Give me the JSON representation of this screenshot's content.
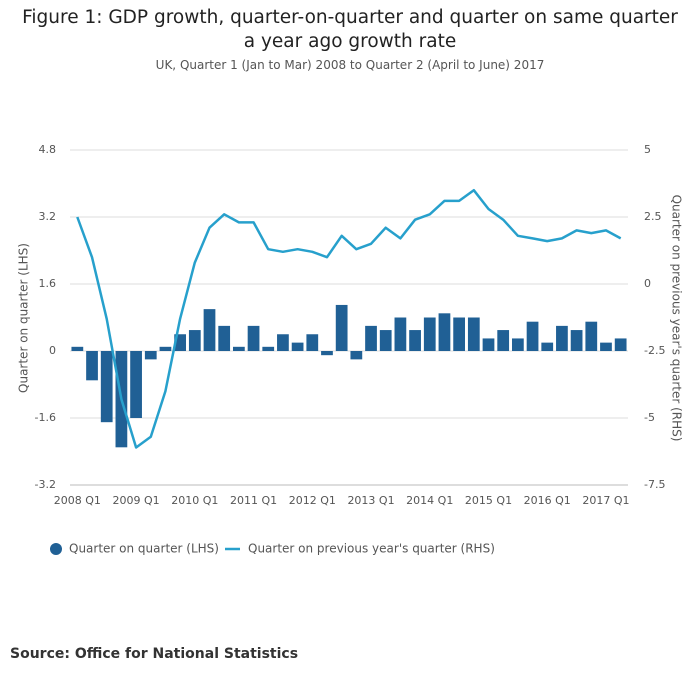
{
  "chart_data": {
    "type": "bar",
    "title": "Figure 1: GDP growth, quarter-on-quarter and quarter on same quarter a year ago growth rate",
    "subtitle": "UK, Quarter 1 (Jan to Mar) 2008 to Quarter 2 (April to June) 2017",
    "y_label": "Quarter on quarter (LHS)",
    "y2_label": "Quarter on previous year's quarter (RHS)",
    "source": "Source: Office for National Statistics",
    "categories": [
      "2008 Q1",
      null,
      null,
      null,
      "2009 Q1",
      null,
      null,
      null,
      "2010 Q1",
      null,
      null,
      null,
      "2011 Q1",
      null,
      null,
      null,
      "2012 Q1",
      null,
      null,
      null,
      "2013 Q1",
      null,
      null,
      null,
      "2014 Q1",
      null,
      null,
      null,
      "2015 Q1",
      null,
      null,
      null,
      "2016 Q1",
      null,
      null,
      null,
      "2017 Q1",
      null
    ],
    "series": [
      {
        "name": "Quarter on quarter (LHS)",
        "type": "bar",
        "color": "#206095",
        "values": [
          0.1,
          -0.7,
          -1.7,
          -2.3,
          -1.6,
          -0.2,
          0.1,
          0.4,
          0.5,
          1.0,
          0.6,
          0.1,
          0.6,
          0.1,
          0.4,
          0.2,
          0.4,
          -0.1,
          1.1,
          -0.2,
          0.6,
          0.5,
          0.8,
          0.5,
          0.8,
          0.9,
          0.8,
          0.8,
          0.3,
          0.5,
          0.3,
          0.7,
          0.2,
          0.6,
          0.5,
          0.7,
          0.2,
          0.3
        ]
      },
      {
        "name": "Quarter on previous year's quarter (RHS)",
        "type": "line",
        "axis": "y2",
        "color": "#27a0cc",
        "values": [
          2.5,
          1.0,
          -1.3,
          -4.3,
          -6.1,
          -5.7,
          -4.0,
          -1.3,
          0.8,
          2.1,
          2.6,
          2.3,
          2.3,
          1.3,
          1.2,
          1.3,
          1.2,
          1.0,
          1.8,
          1.3,
          1.5,
          2.1,
          1.7,
          2.4,
          2.6,
          3.1,
          3.1,
          3.5,
          2.8,
          2.4,
          1.8,
          1.7,
          1.6,
          1.7,
          2.0,
          1.9,
          2.0,
          1.7
        ]
      }
    ],
    "ylim": [
      -3.2,
      4.8
    ],
    "yticks": [
      4.8,
      3.2,
      1.6,
      0,
      -1.6,
      -3.2
    ],
    "y2lim": [
      -7.5,
      5
    ],
    "y2ticks": [
      5,
      2.5,
      0,
      -2.5,
      -5,
      -7.5
    ],
    "grid": true,
    "legend": "bottom"
  }
}
